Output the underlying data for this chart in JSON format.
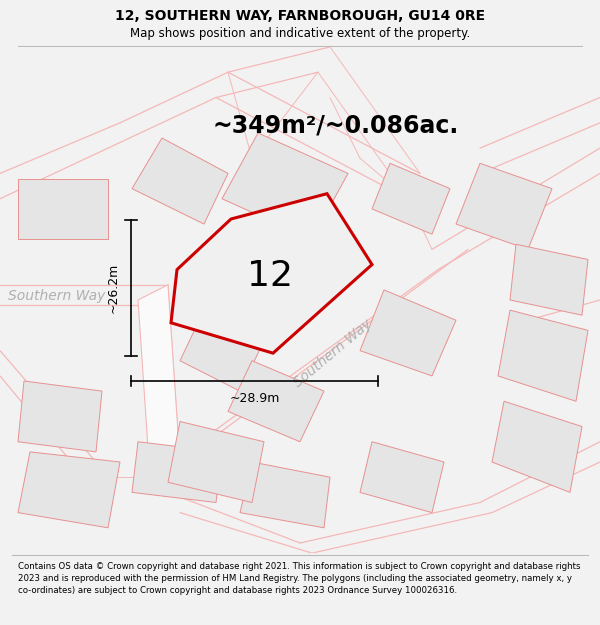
{
  "title_line1": "12, SOUTHERN WAY, FARNBOROUGH, GU14 0RE",
  "title_line2": "Map shows position and indicative extent of the property.",
  "area_text": "~349m²/~0.086ac.",
  "property_number": "12",
  "dim_vertical": "~26.2m",
  "dim_horizontal": "~28.9m",
  "road_label_left": "Southern Way",
  "road_label_diag": "Southern Way",
  "bg_color": "#f2f2f2",
  "map_bg": "#ffffff",
  "footer_text": "Contains OS data © Crown copyright and database right 2021. This information is subject to Crown copyright and database rights 2023 and is reproduced with the permission of HM Land Registry. The polygons (including the associated geometry, namely x, y co-ordinates) are subject to Crown copyright and database rights 2023 Ordnance Survey 100026316.",
  "pink": "#f5b8b8",
  "pink_dark": "#e89090",
  "red": "#cc0000",
  "plot_gray": "#d8d8d8",
  "plot_gray_light": "#e5e5e5",
  "road_gray": "#cccccc",
  "text_gray": "#b0b0b0",
  "title_fontsize": 10,
  "subtitle_fontsize": 8.5,
  "area_fontsize": 17,
  "number_fontsize": 26,
  "dim_fontsize": 9,
  "road_fontsize": 10,
  "footer_fontsize": 6.2
}
